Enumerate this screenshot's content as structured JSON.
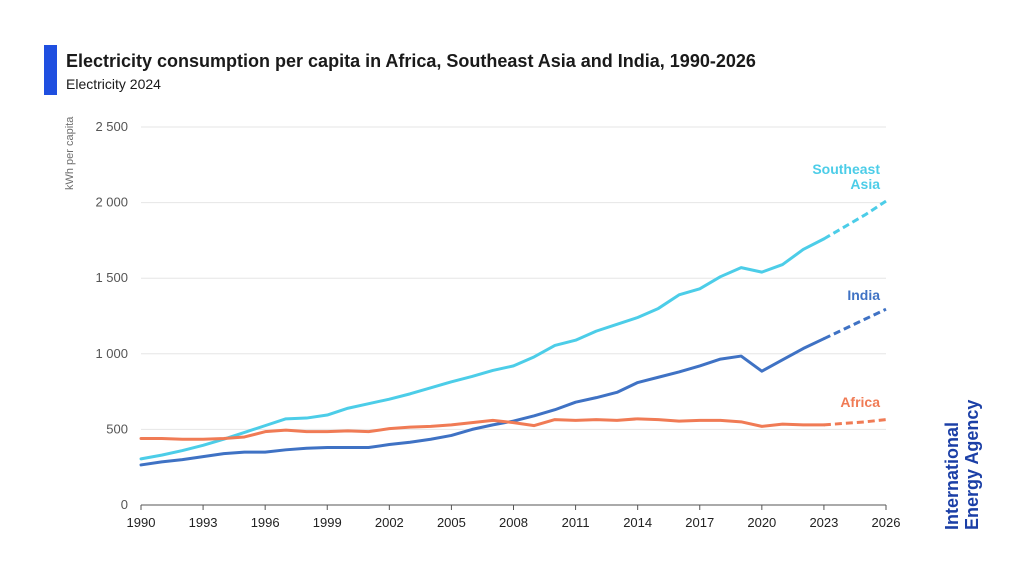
{
  "header": {
    "title": "Electricity consumption per capita in Africa, Southeast Asia and India, 1990-2026",
    "subtitle": "Electricity 2024"
  },
  "colors": {
    "accent": "#1f4fe0",
    "grid": "#e6e6e6",
    "axis": "#555555",
    "tick_text": "#555555"
  },
  "logo": {
    "line1": "International",
    "line2": "Energy Agency"
  },
  "chart_data": {
    "type": "line",
    "title": "Electricity consumption per capita in Africa, Southeast Asia and India, 1990-2026",
    "subtitle": "Electricity 2024",
    "xlabel": "",
    "ylabel": "kWh per capita",
    "xlim": [
      1990,
      2026
    ],
    "ylim": [
      0,
      2500
    ],
    "x_ticks": [
      1990,
      1993,
      1996,
      1999,
      2002,
      2005,
      2008,
      2011,
      2014,
      2017,
      2020,
      2023,
      2026
    ],
    "y_ticks": [
      0,
      500,
      1000,
      1500,
      2000,
      2500
    ],
    "y_tick_labels": [
      "0",
      "500",
      "1 000",
      "1 500",
      "2 000",
      "2 500"
    ],
    "grid": "horizontal",
    "legend": "direct labels at line ends",
    "series": [
      {
        "name": "Southeast Asia",
        "color": "#4ccde8",
        "label_lines": [
          "Southeast",
          "Asia"
        ],
        "x": [
          1990,
          1991,
          1992,
          1993,
          1994,
          1995,
          1996,
          1997,
          1998,
          1999,
          2000,
          2001,
          2002,
          2003,
          2004,
          2005,
          2006,
          2007,
          2008,
          2009,
          2010,
          2011,
          2012,
          2013,
          2014,
          2015,
          2016,
          2017,
          2018,
          2019,
          2020,
          2021,
          2022,
          2023
        ],
        "values": [
          305,
          330,
          360,
          395,
          435,
          480,
          525,
          570,
          575,
          595,
          640,
          670,
          700,
          735,
          775,
          815,
          850,
          890,
          920,
          980,
          1055,
          1090,
          1150,
          1195,
          1240,
          1300,
          1390,
          1430,
          1510,
          1570,
          1540,
          1590,
          1690,
          1760
        ],
        "forecast_x": [
          2023,
          2024,
          2025,
          2026
        ],
        "forecast_values": [
          1760,
          1840,
          1920,
          2010
        ]
      },
      {
        "name": "India",
        "color": "#3f72c4",
        "label_lines": [
          "India"
        ],
        "x": [
          1990,
          1991,
          1992,
          1993,
          1994,
          1995,
          1996,
          1997,
          1998,
          1999,
          2000,
          2001,
          2002,
          2003,
          2004,
          2005,
          2006,
          2007,
          2008,
          2009,
          2010,
          2011,
          2012,
          2013,
          2014,
          2015,
          2016,
          2017,
          2018,
          2019,
          2020,
          2021,
          2022,
          2023
        ],
        "values": [
          265,
          285,
          300,
          320,
          340,
          350,
          350,
          365,
          375,
          380,
          380,
          380,
          400,
          415,
          435,
          460,
          500,
          530,
          555,
          590,
          630,
          680,
          710,
          745,
          810,
          845,
          880,
          920,
          965,
          985,
          885,
          960,
          1035,
          1100
        ],
        "forecast_x": [
          2023,
          2024,
          2025,
          2026
        ],
        "forecast_values": [
          1100,
          1165,
          1230,
          1295
        ]
      },
      {
        "name": "Africa",
        "color": "#f07b55",
        "label_lines": [
          "Africa"
        ],
        "x": [
          1990,
          1991,
          1992,
          1993,
          1994,
          1995,
          1996,
          1997,
          1998,
          1999,
          2000,
          2001,
          2002,
          2003,
          2004,
          2005,
          2006,
          2007,
          2008,
          2009,
          2010,
          2011,
          2012,
          2013,
          2014,
          2015,
          2016,
          2017,
          2018,
          2019,
          2020,
          2021,
          2022,
          2023
        ],
        "values": [
          440,
          440,
          435,
          435,
          440,
          450,
          485,
          495,
          485,
          485,
          490,
          485,
          505,
          515,
          520,
          530,
          545,
          560,
          545,
          525,
          565,
          560,
          565,
          560,
          570,
          565,
          555,
          560,
          560,
          550,
          520,
          535,
          530,
          530
        ],
        "forecast_x": [
          2023,
          2024,
          2025,
          2026
        ],
        "forecast_values": [
          530,
          540,
          550,
          565
        ]
      }
    ]
  }
}
